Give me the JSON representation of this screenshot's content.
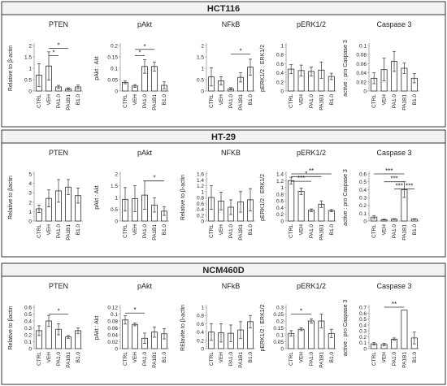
{
  "panels": [
    {
      "title": "HCT116",
      "charts": [
        {
          "title": "PTEN",
          "ylabel": "Relative to β-actin",
          "ylim": [
            0,
            2
          ],
          "yticks": [
            "0",
            "0.5",
            "1",
            "1.5",
            "2"
          ],
          "categories": [
            "CTRL",
            "VEH",
            "PA1.0",
            "PA1B1",
            "B1.0"
          ],
          "values": [
            0.7,
            1.1,
            0.18,
            0.1,
            0.18
          ],
          "errors": [
            0.5,
            0.62,
            0.07,
            0.04,
            0.08
          ],
          "sig": [
            {
              "from": 1,
              "to": 3,
              "label": "*",
              "level": 1.87
            },
            {
              "from": 1,
              "to": 2,
              "label": "*",
              "level": 1.55
            }
          ]
        },
        {
          "title": "pAkt",
          "ylabel": "pAkt : Akt",
          "ylim": [
            0,
            0.2
          ],
          "yticks": [
            "0",
            "0.05",
            "0.1",
            "0.15",
            "0.2"
          ],
          "categories": [
            "CTRL",
            "VEH",
            "PA1.0",
            "PA1B1",
            "B1.0"
          ],
          "values": [
            0.038,
            0.022,
            0.108,
            0.108,
            0.025
          ],
          "errors": [
            0.006,
            0.006,
            0.03,
            0.02,
            0.015
          ],
          "sig": [
            {
              "from": 1,
              "to": 3,
              "label": "*",
              "level": 0.183
            },
            {
              "from": 1,
              "to": 2,
              "label": "*",
              "level": 0.155
            }
          ]
        },
        {
          "title": "NFkB",
          "ylabel": "",
          "ylim": [
            0,
            2
          ],
          "yticks": [
            "0",
            "0.5",
            "1",
            "1.5",
            "2"
          ],
          "categories": [
            "CTRL",
            "VEH",
            "PA1.0",
            "PA1B1",
            "B1.0"
          ],
          "values": [
            0.62,
            0.45,
            0.1,
            0.6,
            1.05
          ],
          "errors": [
            0.4,
            0.18,
            0.05,
            0.2,
            0.35
          ],
          "sig": [
            {
              "from": 2,
              "to": 4,
              "label": "*",
              "level": 1.62
            }
          ]
        },
        {
          "title": "pERK1/2",
          "ylabel": "pERK1/2 : ERK1/2",
          "ylim": [
            0,
            1
          ],
          "yticks": [
            "0",
            "0.2",
            "0.4",
            "0.6",
            "0.8",
            "1"
          ],
          "categories": [
            "CTRL",
            "VEH",
            "PA1.0",
            "PA1B1",
            "B1.0"
          ],
          "values": [
            0.48,
            0.45,
            0.43,
            0.46,
            0.32
          ],
          "errors": [
            0.1,
            0.12,
            0.1,
            0.18,
            0.07
          ],
          "sig": []
        },
        {
          "title": "Caspase 3",
          "ylabel": "active : pro Caspase 3",
          "ylim": [
            0,
            0.1
          ],
          "yticks": [
            "0",
            "0.02",
            "0.04",
            "0.06",
            "0.08",
            "0.1"
          ],
          "categories": [
            "CTRL",
            "VEH",
            "PA1.0",
            "PA1B1",
            "B1.0"
          ],
          "values": [
            0.028,
            0.047,
            0.065,
            0.05,
            0.028
          ],
          "errors": [
            0.012,
            0.025,
            0.022,
            0.012,
            0.01
          ],
          "sig": []
        }
      ]
    },
    {
      "title": "HT-29",
      "charts": [
        {
          "title": "PTEN",
          "ylabel": "Relative to βactin",
          "ylim": [
            0,
            5
          ],
          "yticks": [
            "0",
            "1",
            "2",
            "3",
            "4",
            "5"
          ],
          "categories": [
            "CTRL",
            "VEH",
            "PA1.0",
            "PA1B1",
            "B1.0"
          ],
          "values": [
            1.3,
            2.4,
            3.2,
            3.6,
            2.7
          ],
          "errors": [
            0.4,
            0.9,
            1.2,
            0.8,
            0.8
          ],
          "sig": []
        },
        {
          "title": "pAkt",
          "ylabel": "pAkt : Akt",
          "ylim": [
            0,
            2
          ],
          "yticks": [
            "0",
            "0.5",
            "1",
            "1.5",
            "2"
          ],
          "categories": [
            "CTRL",
            "VEH",
            "PA1.0",
            "PA1B1",
            "B1.0"
          ],
          "values": [
            0.92,
            0.95,
            1.1,
            0.68,
            0.42
          ],
          "errors": [
            0.5,
            0.55,
            0.6,
            0.3,
            0.18
          ],
          "sig": [
            {
              "from": 2,
              "to": 4,
              "label": "*",
              "level": 1.7
            }
          ]
        },
        {
          "title": "NFKB",
          "ylabel": "Relative to β-actin",
          "ylim": [
            0,
            1.6
          ],
          "yticks": [
            "0",
            "0.2",
            "0.4",
            "0.6",
            "0.8",
            "1",
            "1.2",
            "1.4",
            "1.6"
          ],
          "categories": [
            "CTRL",
            "VEH",
            "PA1.0",
            "PA1B1",
            "B1.0"
          ],
          "values": [
            0.8,
            0.68,
            0.47,
            0.65,
            0.72
          ],
          "errors": [
            0.4,
            0.3,
            0.25,
            0.35,
            0.38
          ],
          "sig": []
        },
        {
          "title": "pERK1/2",
          "ylabel": "pERK1/2 : ERK1/2",
          "ylim": [
            0,
            1.4
          ],
          "yticks": [
            "0",
            "0.2",
            "0.4",
            "0.6",
            "0.8",
            "1",
            "1.2",
            "1.4"
          ],
          "categories": [
            "CTRL",
            "VEH",
            "PA1.0",
            "PA1B1",
            "B1.0"
          ],
          "values": [
            1.2,
            0.88,
            0.32,
            0.5,
            0.31
          ],
          "errors": [
            0.1,
            0.1,
            0.04,
            0.1,
            0.03
          ],
          "sig": [
            {
              "from": 0,
              "to": 4,
              "label": "**",
              "level": 1.4
            },
            {
              "from": 0,
              "to": 3,
              "label": "*",
              "level": 1.32
            },
            {
              "from": 0,
              "to": 2,
              "label": "***",
              "level": 1.18
            }
          ]
        },
        {
          "title": "Caspase 3",
          "ylabel": "active : pro Caspase 3",
          "ylim": [
            0,
            0.6
          ],
          "yticks": [
            "0",
            "0.1",
            "0.2",
            "0.3",
            "0.4",
            "0.5",
            "0.6"
          ],
          "categories": [
            "CTRL",
            "VEH",
            "PA1.0",
            "PA1B1",
            "B1.0"
          ],
          "values": [
            0.05,
            0.018,
            0.025,
            0.4,
            0.025
          ],
          "errors": [
            0.02,
            0.005,
            0.005,
            0.1,
            0.005
          ],
          "sig": [
            {
              "from": 0,
              "to": 3,
              "label": "***",
              "level": 0.6
            },
            {
              "from": 1,
              "to": 3,
              "label": "***",
              "level": 0.5
            },
            {
              "from": 2,
              "to": 3,
              "label": "***",
              "level": 0.41
            },
            {
              "from": 3,
              "to": 4,
              "label": "***",
              "level": 0.41
            }
          ]
        }
      ]
    },
    {
      "title": "NCM460D",
      "charts": [
        {
          "title": "PTEN",
          "ylabel": "Relative to βactin",
          "ylim": [
            0,
            0.6
          ],
          "yticks": [
            "0",
            "0.1",
            "0.2",
            "0.3",
            "0.4",
            "0.5",
            "0.6"
          ],
          "categories": [
            "CTRL",
            "VEH",
            "PA1.0",
            "PA1B1",
            "B1.0"
          ],
          "values": [
            0.26,
            0.4,
            0.28,
            0.17,
            0.26
          ],
          "errors": [
            0.07,
            0.08,
            0.08,
            0.02,
            0.04
          ],
          "sig": [
            {
              "from": 1,
              "to": 3,
              "label": "*",
              "level": 0.5
            }
          ]
        },
        {
          "title": "pAkt",
          "ylabel": "pAkt : Akt",
          "ylim": [
            0,
            0.12
          ],
          "yticks": [
            "0",
            "0.02",
            "0.04",
            "0.06",
            "0.08",
            "0.1",
            "0.12"
          ],
          "categories": [
            "CTRL",
            "VEH",
            "PA1.0",
            "PA1B1",
            "B1.0"
          ],
          "values": [
            0.083,
            0.07,
            0.03,
            0.048,
            0.043
          ],
          "errors": [
            0.012,
            0.004,
            0.015,
            0.015,
            0.015
          ],
          "sig": [
            {
              "from": 0,
              "to": 2,
              "label": "*",
              "level": 0.103
            }
          ]
        },
        {
          "title": "NFkB",
          "ylabel": "RElavite to β-actin",
          "ylim": [
            0,
            1
          ],
          "yticks": [
            "0",
            "0.2",
            "0.4",
            "0.6",
            "0.8",
            "1"
          ],
          "categories": [
            "CTRL",
            "VEH",
            "PA1.0",
            "PA1B1",
            "B1.0"
          ],
          "values": [
            0.4,
            0.38,
            0.37,
            0.45,
            0.65
          ],
          "errors": [
            0.2,
            0.22,
            0.2,
            0.2,
            0.15
          ],
          "sig": []
        },
        {
          "title": "pERK1/2",
          "ylabel": "pERK1/2 : ERK1/2",
          "ylim": [
            0,
            0.3
          ],
          "yticks": [
            "0",
            "0.05",
            "0.1",
            "0.15",
            "0.2",
            "0.25",
            "0.3"
          ],
          "categories": [
            "CTRL",
            "VEH",
            "PA1.0",
            "PA1B1",
            "B1.0"
          ],
          "values": [
            0.11,
            0.14,
            0.2,
            0.2,
            0.11
          ],
          "errors": [
            0.02,
            0.01,
            0.015,
            0.05,
            0.03
          ],
          "sig": [
            {
              "from": 0,
              "to": 2,
              "label": "*",
              "level": 0.25
            }
          ]
        },
        {
          "title": "Caspase 3",
          "ylabel": "active : pro Caspase 3",
          "ylim": [
            0,
            0.7
          ],
          "yticks": [
            "0",
            "0.1",
            "0.2",
            "0.3",
            "0.4",
            "0.5",
            "0.6",
            "0.7"
          ],
          "categories": [
            "CTRL",
            "VEH",
            "PA1.0",
            "PA1B1",
            "B1.0"
          ],
          "values": [
            0.08,
            0.07,
            0.16,
            0.65,
            0.18
          ],
          "errors": [
            0.02,
            0.02,
            0.02,
            0.0,
            0.1
          ],
          "sig": [
            {
              "from": 1,
              "to": 3,
              "label": "**",
              "level": 0.7
            }
          ]
        }
      ]
    }
  ]
}
